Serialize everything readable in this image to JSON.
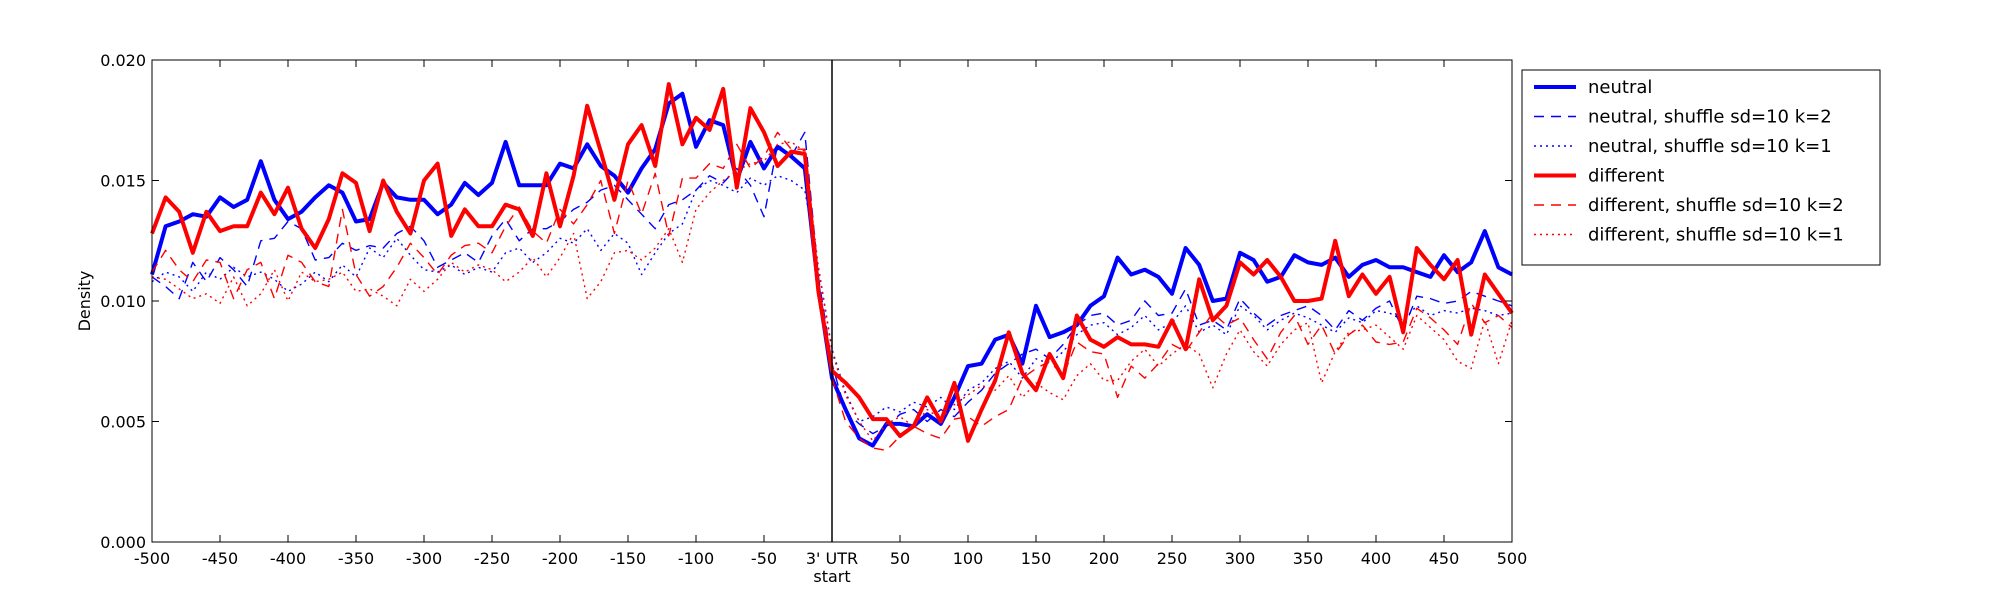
{
  "chart_data": {
    "type": "line",
    "title": "",
    "ylabel": "Density",
    "xlabel": "",
    "xlim": [
      -500,
      500
    ],
    "ylim": [
      0,
      0.02
    ],
    "grid": false,
    "legend_position": "outside-right-top",
    "reference_line": {
      "x": 0
    },
    "x_ticks": [
      {
        "value": -500,
        "label": "-500"
      },
      {
        "value": -450,
        "label": "-450"
      },
      {
        "value": -400,
        "label": "-400"
      },
      {
        "value": -350,
        "label": "-350"
      },
      {
        "value": -300,
        "label": "-300"
      },
      {
        "value": -250,
        "label": "-250"
      },
      {
        "value": -200,
        "label": "-200"
      },
      {
        "value": -150,
        "label": "-150"
      },
      {
        "value": -100,
        "label": "-100"
      },
      {
        "value": -50,
        "label": "-50"
      },
      {
        "value": 0,
        "label": "3' UTR",
        "label2": "start"
      },
      {
        "value": 50,
        "label": "50"
      },
      {
        "value": 100,
        "label": "100"
      },
      {
        "value": 150,
        "label": "150"
      },
      {
        "value": 200,
        "label": "200"
      },
      {
        "value": 250,
        "label": "250"
      },
      {
        "value": 300,
        "label": "300"
      },
      {
        "value": 350,
        "label": "350"
      },
      {
        "value": 400,
        "label": "400"
      },
      {
        "value": 450,
        "label": "450"
      },
      {
        "value": 500,
        "label": "500"
      }
    ],
    "y_ticks": [
      {
        "value": 0,
        "label": "0.000"
      },
      {
        "value": 0.005,
        "label": "0.005"
      },
      {
        "value": 0.01,
        "label": "0.010"
      },
      {
        "value": 0.015,
        "label": "0.015"
      },
      {
        "value": 0.02,
        "label": "0.020"
      }
    ],
    "x": [
      -500,
      -490,
      -480,
      -470,
      -460,
      -450,
      -440,
      -430,
      -420,
      -410,
      -400,
      -390,
      -380,
      -370,
      -360,
      -350,
      -340,
      -330,
      -320,
      -310,
      -300,
      -290,
      -280,
      -270,
      -260,
      -250,
      -240,
      -230,
      -220,
      -210,
      -200,
      -190,
      -180,
      -170,
      -160,
      -150,
      -140,
      -130,
      -120,
      -110,
      -100,
      -90,
      -80,
      -70,
      -60,
      -50,
      -40,
      -30,
      -20,
      -10,
      0,
      10,
      20,
      30,
      40,
      50,
      60,
      70,
      80,
      90,
      100,
      110,
      120,
      130,
      140,
      150,
      160,
      170,
      180,
      190,
      200,
      210,
      220,
      230,
      240,
      250,
      260,
      270,
      280,
      290,
      300,
      310,
      320,
      330,
      340,
      350,
      360,
      370,
      380,
      390,
      400,
      410,
      420,
      430,
      440,
      450,
      460,
      470,
      480,
      490,
      500
    ],
    "series": [
      {
        "name": "neutral",
        "color": "#0000ff",
        "style": "solid",
        "width": "thick",
        "values": [
          0.0111,
          0.0131,
          0.0133,
          0.0136,
          0.0135,
          0.0143,
          0.0139,
          0.0142,
          0.0158,
          0.0142,
          0.0134,
          0.0137,
          0.0143,
          0.0148,
          0.0145,
          0.0133,
          0.0134,
          0.0149,
          0.0143,
          0.0142,
          0.0142,
          0.0136,
          0.014,
          0.0149,
          0.0144,
          0.0149,
          0.0166,
          0.0148,
          0.0148,
          0.0148,
          0.0157,
          0.0155,
          0.0165,
          0.0156,
          0.0152,
          0.0145,
          0.0155,
          0.0163,
          0.0182,
          0.0186,
          0.0164,
          0.0175,
          0.0173,
          0.015,
          0.0166,
          0.0155,
          0.0164,
          0.016,
          0.0155,
          0.0105,
          0.0068,
          0.0055,
          0.0043,
          0.004,
          0.0049,
          0.0049,
          0.0048,
          0.0053,
          0.0049,
          0.006,
          0.0073,
          0.0074,
          0.0084,
          0.0086,
          0.0074,
          0.0098,
          0.0085,
          0.0087,
          0.009,
          0.0098,
          0.0102,
          0.0118,
          0.0111,
          0.0113,
          0.011,
          0.0103,
          0.0122,
          0.0115,
          0.01,
          0.0101,
          0.012,
          0.0117,
          0.0108,
          0.011,
          0.0119,
          0.0116,
          0.0115,
          0.0118,
          0.011,
          0.0115,
          0.0117,
          0.0114,
          0.0114,
          0.0112,
          0.011,
          0.0119,
          0.0112,
          0.0116,
          0.0129,
          0.0114,
          0.0111
        ]
      },
      {
        "name": "neutral, shuffle sd=10 k=2",
        "color": "#0000ff",
        "style": "dashed",
        "width": "thin",
        "values": [
          0.011,
          0.0106,
          0.0101,
          0.0116,
          0.0108,
          0.0118,
          0.0113,
          0.0106,
          0.0125,
          0.0126,
          0.0133,
          0.013,
          0.0117,
          0.0118,
          0.0124,
          0.0121,
          0.0123,
          0.0122,
          0.0128,
          0.0131,
          0.0125,
          0.0114,
          0.0117,
          0.012,
          0.0116,
          0.0127,
          0.0134,
          0.0125,
          0.013,
          0.013,
          0.0133,
          0.0138,
          0.0141,
          0.0146,
          0.0148,
          0.0142,
          0.0136,
          0.013,
          0.014,
          0.0142,
          0.0146,
          0.0152,
          0.0149,
          0.0155,
          0.0148,
          0.0135,
          0.0165,
          0.016,
          0.017,
          0.011,
          0.0074,
          0.0054,
          0.0049,
          0.0045,
          0.0048,
          0.0053,
          0.0055,
          0.005,
          0.0055,
          0.0052,
          0.0058,
          0.0063,
          0.007,
          0.0074,
          0.0078,
          0.008,
          0.0076,
          0.0082,
          0.009,
          0.0094,
          0.0095,
          0.009,
          0.0092,
          0.01,
          0.0094,
          0.0095,
          0.0105,
          0.009,
          0.0092,
          0.0088,
          0.0101,
          0.0095,
          0.009,
          0.0094,
          0.0096,
          0.0098,
          0.0094,
          0.0088,
          0.0096,
          0.0092,
          0.0097,
          0.01,
          0.0088,
          0.0102,
          0.0101,
          0.0099,
          0.01,
          0.0104,
          0.0102,
          0.01,
          0.0098
        ]
      },
      {
        "name": "neutral, shuffle sd=10 k=1",
        "color": "#0000ff",
        "style": "dotted",
        "width": "thin",
        "values": [
          0.0108,
          0.0112,
          0.011,
          0.0104,
          0.0112,
          0.0109,
          0.0114,
          0.011,
          0.0112,
          0.0109,
          0.0104,
          0.0107,
          0.0112,
          0.0108,
          0.0115,
          0.011,
          0.0122,
          0.0118,
          0.0126,
          0.0119,
          0.0113,
          0.0112,
          0.0115,
          0.0111,
          0.0114,
          0.0112,
          0.012,
          0.0122,
          0.0116,
          0.012,
          0.0126,
          0.0124,
          0.013,
          0.0121,
          0.0128,
          0.0124,
          0.0111,
          0.012,
          0.0128,
          0.0132,
          0.0146,
          0.015,
          0.0148,
          0.0145,
          0.0151,
          0.0148,
          0.0152,
          0.015,
          0.0146,
          0.0114,
          0.008,
          0.0062,
          0.005,
          0.0052,
          0.0056,
          0.0054,
          0.0058,
          0.0056,
          0.006,
          0.0055,
          0.0063,
          0.0066,
          0.0072,
          0.0075,
          0.0068,
          0.0076,
          0.0074,
          0.0079,
          0.0086,
          0.009,
          0.0091,
          0.0086,
          0.0089,
          0.0094,
          0.0088,
          0.0091,
          0.0098,
          0.0087,
          0.009,
          0.0086,
          0.0098,
          0.0094,
          0.0088,
          0.0092,
          0.0095,
          0.0093,
          0.009,
          0.0087,
          0.0093,
          0.0091,
          0.0096,
          0.0095,
          0.0092,
          0.0098,
          0.0094,
          0.0096,
          0.0095,
          0.0097,
          0.0096,
          0.0094,
          0.0095
        ]
      },
      {
        "name": "different",
        "color": "#ff0000",
        "style": "solid",
        "width": "thick",
        "values": [
          0.0128,
          0.0143,
          0.0137,
          0.012,
          0.0137,
          0.0129,
          0.0131,
          0.0131,
          0.0145,
          0.0136,
          0.0147,
          0.013,
          0.0122,
          0.0134,
          0.0153,
          0.0149,
          0.0129,
          0.015,
          0.0137,
          0.0128,
          0.015,
          0.0157,
          0.0127,
          0.0138,
          0.0131,
          0.0131,
          0.014,
          0.0138,
          0.0127,
          0.0153,
          0.0131,
          0.0152,
          0.0181,
          0.0162,
          0.0142,
          0.0165,
          0.0173,
          0.0156,
          0.019,
          0.0165,
          0.0176,
          0.0171,
          0.0188,
          0.0147,
          0.018,
          0.017,
          0.0156,
          0.0162,
          0.0161,
          0.0104,
          0.0071,
          0.0066,
          0.006,
          0.0051,
          0.0051,
          0.0044,
          0.0048,
          0.006,
          0.005,
          0.0066,
          0.0042,
          0.0055,
          0.0067,
          0.0087,
          0.007,
          0.0063,
          0.0078,
          0.0068,
          0.0094,
          0.0084,
          0.0081,
          0.0085,
          0.0082,
          0.0082,
          0.0081,
          0.0092,
          0.008,
          0.0109,
          0.0092,
          0.0098,
          0.0116,
          0.0111,
          0.0117,
          0.011,
          0.01,
          0.01,
          0.0101,
          0.0125,
          0.0102,
          0.0111,
          0.0103,
          0.011,
          0.0087,
          0.0122,
          0.0115,
          0.0109,
          0.0117,
          0.0086,
          0.0111,
          0.0103,
          0.0095
        ]
      },
      {
        "name": "different, shuffle sd=10 k=2",
        "color": "#ff0000",
        "style": "dashed",
        "width": "thin",
        "values": [
          0.0112,
          0.0121,
          0.0113,
          0.0108,
          0.0117,
          0.0116,
          0.0101,
          0.0113,
          0.0116,
          0.0101,
          0.0119,
          0.0116,
          0.0108,
          0.0106,
          0.0138,
          0.0111,
          0.0102,
          0.0106,
          0.0114,
          0.0124,
          0.0118,
          0.0111,
          0.0119,
          0.0123,
          0.0124,
          0.012,
          0.0131,
          0.0139,
          0.0129,
          0.0124,
          0.0138,
          0.0132,
          0.014,
          0.015,
          0.0128,
          0.015,
          0.0136,
          0.0153,
          0.0127,
          0.0151,
          0.0151,
          0.0157,
          0.0155,
          0.0165,
          0.0155,
          0.016,
          0.017,
          0.0163,
          0.0163,
          0.0108,
          0.0068,
          0.005,
          0.0043,
          0.0039,
          0.0038,
          0.0044,
          0.0048,
          0.0045,
          0.0043,
          0.0051,
          0.0052,
          0.0048,
          0.0052,
          0.0055,
          0.0068,
          0.0072,
          0.0075,
          0.0069,
          0.0083,
          0.0079,
          0.0078,
          0.006,
          0.0073,
          0.0068,
          0.0074,
          0.0082,
          0.0079,
          0.0087,
          0.0095,
          0.009,
          0.0093,
          0.0084,
          0.0076,
          0.0087,
          0.0094,
          0.0082,
          0.009,
          0.0078,
          0.0086,
          0.009,
          0.0083,
          0.0082,
          0.0083,
          0.0097,
          0.0093,
          0.0088,
          0.0082,
          0.0099,
          0.0091,
          0.0094,
          0.0089
        ]
      },
      {
        "name": "different, shuffle sd=10 k=1",
        "color": "#ff0000",
        "style": "dotted",
        "width": "thin",
        "values": [
          0.011,
          0.0109,
          0.0105,
          0.0101,
          0.0103,
          0.0099,
          0.011,
          0.0098,
          0.0103,
          0.0113,
          0.01,
          0.0112,
          0.0108,
          0.0109,
          0.0112,
          0.0104,
          0.0105,
          0.0102,
          0.0098,
          0.0109,
          0.0104,
          0.0109,
          0.0116,
          0.0112,
          0.0115,
          0.0113,
          0.0108,
          0.0112,
          0.0118,
          0.011,
          0.0118,
          0.0128,
          0.0101,
          0.0108,
          0.012,
          0.0121,
          0.0117,
          0.0122,
          0.013,
          0.0116,
          0.0138,
          0.0145,
          0.015,
          0.0154,
          0.0157,
          0.0158,
          0.0165,
          0.0166,
          0.0162,
          0.0114,
          0.0079,
          0.0061,
          0.005,
          0.0042,
          0.0049,
          0.0052,
          0.0048,
          0.0055,
          0.0051,
          0.0057,
          0.0061,
          0.0065,
          0.0063,
          0.0069,
          0.006,
          0.0066,
          0.0062,
          0.0059,
          0.0069,
          0.0074,
          0.0067,
          0.0067,
          0.0075,
          0.008,
          0.0073,
          0.0078,
          0.0082,
          0.0078,
          0.0064,
          0.0078,
          0.0088,
          0.0079,
          0.0073,
          0.0082,
          0.0088,
          0.0091,
          0.0066,
          0.0079,
          0.0087,
          0.0088,
          0.009,
          0.0085,
          0.008,
          0.0094,
          0.0089,
          0.0084,
          0.0075,
          0.0072,
          0.0092,
          0.0074,
          0.0092
        ]
      }
    ]
  }
}
